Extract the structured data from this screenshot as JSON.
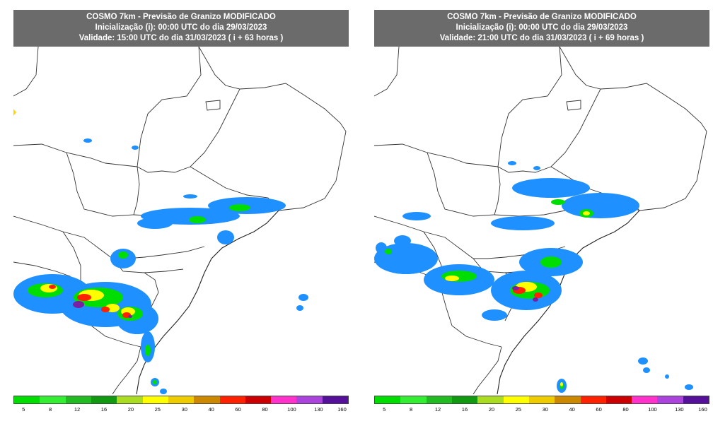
{
  "panels": [
    {
      "title": "COSMO 7km - Previsão de Granizo MODIFICADO",
      "init": "Inicialização (i): 00:00 UTC do dia 29/03/2023",
      "valid": "Validade: 15:00 UTC do dia 31/03/2023 ( i + 63 horas )"
    },
    {
      "title": "COSMO 7km - Previsão de Granizo MODIFICADO",
      "init": "Inicialização (i): 00:00 UTC do dia 29/03/2023",
      "valid": "Validade: 21:00 UTC do dia 31/03/2023 ( i + 69 horas )"
    }
  ],
  "legend": {
    "labels": [
      "5",
      "8",
      "12",
      "16",
      "20",
      "25",
      "30",
      "40",
      "60",
      "80",
      "100",
      "130",
      "160"
    ],
    "colors": [
      "#00dd00",
      "#33ee33",
      "#22bb22",
      "#119911",
      "#aadd22",
      "#ffff00",
      "#eecc00",
      "#cc8800",
      "#ff2200",
      "#cc0000",
      "#ff33cc",
      "#aa44dd",
      "#551199"
    ]
  },
  "colors": {
    "header_bg": "#6b6b6b",
    "rain_light": "#1e90ff",
    "rain_medium": "#00dd00",
    "rain_heavy": "#ffff00",
    "rain_intense": "#ff2200",
    "rain_extreme": "#7a1fa2"
  }
}
